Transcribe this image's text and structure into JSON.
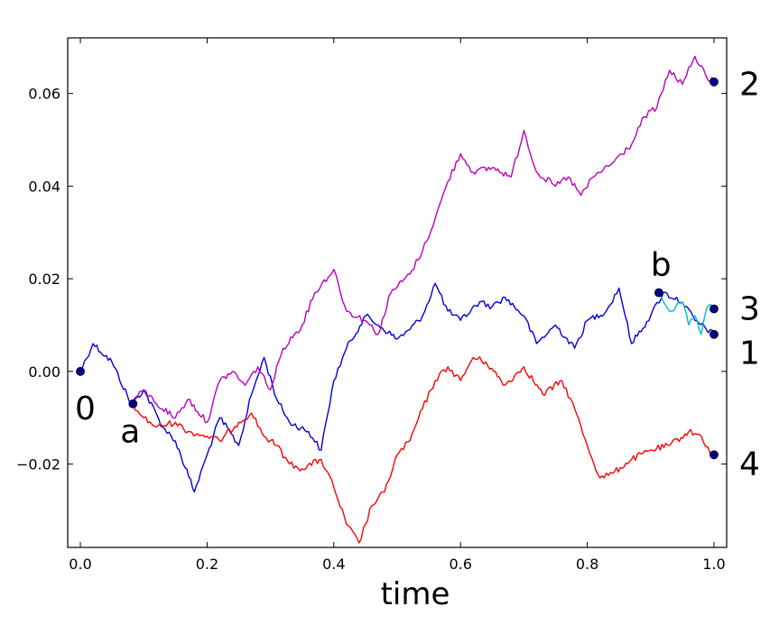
{
  "chart_data": {
    "type": "line",
    "title": "",
    "xlabel": "time",
    "ylabel": "",
    "xlim": [
      -0.02,
      1.02
    ],
    "ylim": [
      -0.038,
      0.072
    ],
    "grid": false,
    "x_ticks": [
      0.0,
      0.2,
      0.4,
      0.6,
      0.8,
      1.0
    ],
    "x_tick_labels": [
      "0.0",
      "0.2",
      "0.4",
      "0.6",
      "0.8",
      "1.0"
    ],
    "y_ticks": [
      -0.02,
      0.0,
      0.02,
      0.04,
      0.06
    ],
    "y_tick_labels": [
      "−0.02",
      "0.00",
      "0.02",
      "0.04",
      "0.06"
    ],
    "series": [
      {
        "color": "#0000dd",
        "x": [
          0.0,
          0.02,
          0.05,
          0.08,
          0.1,
          0.13,
          0.15,
          0.18,
          0.2,
          0.22,
          0.25,
          0.27,
          0.29,
          0.31,
          0.33,
          0.36,
          0.38,
          0.4,
          0.42,
          0.45,
          0.47,
          0.5,
          0.52,
          0.54,
          0.56,
          0.58,
          0.6,
          0.63,
          0.65,
          0.67,
          0.7,
          0.72,
          0.75,
          0.78,
          0.8,
          0.83,
          0.85,
          0.87,
          0.9,
          0.92,
          0.95,
          0.97,
          1.0
        ],
        "y": [
          0.0,
          0.006,
          0.002,
          -0.007,
          -0.004,
          -0.012,
          -0.015,
          -0.026,
          -0.018,
          -0.01,
          -0.016,
          -0.005,
          0.003,
          -0.006,
          -0.011,
          -0.013,
          -0.017,
          -0.002,
          0.005,
          0.012,
          0.01,
          0.007,
          0.009,
          0.012,
          0.019,
          0.013,
          0.011,
          0.015,
          0.014,
          0.016,
          0.012,
          0.006,
          0.01,
          0.005,
          0.011,
          0.013,
          0.018,
          0.006,
          0.012,
          0.017,
          0.015,
          0.011,
          0.008
        ]
      },
      {
        "color": "#ff0000",
        "x": [
          0.08,
          0.1,
          0.12,
          0.15,
          0.17,
          0.2,
          0.22,
          0.25,
          0.27,
          0.29,
          0.31,
          0.33,
          0.35,
          0.38,
          0.4,
          0.42,
          0.44,
          0.46,
          0.48,
          0.5,
          0.52,
          0.54,
          0.56,
          0.58,
          0.6,
          0.62,
          0.64,
          0.67,
          0.7,
          0.73,
          0.76,
          0.78,
          0.8,
          0.82,
          0.84,
          0.87,
          0.9,
          0.93,
          0.96,
          0.98,
          1.0
        ],
        "y": [
          -0.007,
          -0.01,
          -0.012,
          -0.011,
          -0.013,
          -0.014,
          -0.015,
          -0.011,
          -0.009,
          -0.014,
          -0.016,
          -0.02,
          -0.021,
          -0.019,
          -0.025,
          -0.033,
          -0.037,
          -0.029,
          -0.026,
          -0.018,
          -0.015,
          -0.008,
          -0.002,
          0.001,
          -0.002,
          0.003,
          0.002,
          -0.003,
          0.001,
          -0.005,
          -0.002,
          -0.008,
          -0.016,
          -0.023,
          -0.022,
          -0.019,
          -0.017,
          -0.016,
          -0.013,
          -0.014,
          -0.019
        ]
      },
      {
        "color": "#bb00bb",
        "x": [
          0.08,
          0.1,
          0.12,
          0.15,
          0.17,
          0.2,
          0.22,
          0.24,
          0.26,
          0.28,
          0.3,
          0.32,
          0.35,
          0.37,
          0.4,
          0.42,
          0.45,
          0.47,
          0.49,
          0.52,
          0.54,
          0.56,
          0.58,
          0.6,
          0.62,
          0.65,
          0.68,
          0.7,
          0.72,
          0.75,
          0.77,
          0.79,
          0.81,
          0.84,
          0.87,
          0.89,
          0.91,
          0.93,
          0.95,
          0.97,
          0.99,
          1.0
        ],
        "y": [
          -0.007,
          -0.004,
          -0.007,
          -0.01,
          -0.006,
          -0.011,
          -0.002,
          0.0,
          -0.003,
          0.001,
          -0.004,
          0.005,
          0.01,
          0.017,
          0.022,
          0.013,
          0.011,
          0.008,
          0.017,
          0.021,
          0.026,
          0.033,
          0.041,
          0.047,
          0.043,
          0.044,
          0.042,
          0.052,
          0.043,
          0.04,
          0.042,
          0.038,
          0.042,
          0.045,
          0.049,
          0.055,
          0.057,
          0.065,
          0.062,
          0.068,
          0.063,
          0.063
        ]
      },
      {
        "color": "#00bbcc",
        "x": [
          0.913,
          0.93,
          0.95,
          0.96,
          0.97,
          0.98,
          0.99,
          1.0
        ],
        "y": [
          0.017,
          0.013,
          0.015,
          0.01,
          0.012,
          0.008,
          0.014,
          0.0135
        ]
      }
    ],
    "markers": [
      {
        "x": 0.0,
        "y": 0.0
      },
      {
        "x": 0.083,
        "y": -0.007
      },
      {
        "x": 1.0,
        "y": 0.0625
      },
      {
        "x": 0.913,
        "y": 0.017
      },
      {
        "x": 1.0,
        "y": 0.0135
      },
      {
        "x": 1.0,
        "y": 0.008
      },
      {
        "x": 1.0,
        "y": -0.018
      }
    ],
    "annotations": [
      {
        "text": "0",
        "x": 0.0,
        "y": -0.008
      },
      {
        "text": "a",
        "x": 0.063,
        "y": -0.013
      },
      {
        "text": "b",
        "x": 0.9,
        "y": 0.023
      },
      {
        "text": "2",
        "x": 1.04,
        "y": 0.062
      },
      {
        "text": "3",
        "x": 1.04,
        "y": 0.0135
      },
      {
        "text": "1",
        "x": 1.04,
        "y": 0.004
      },
      {
        "text": "4",
        "x": 1.04,
        "y": -0.02
      }
    ],
    "marker_color": "#00008b"
  }
}
